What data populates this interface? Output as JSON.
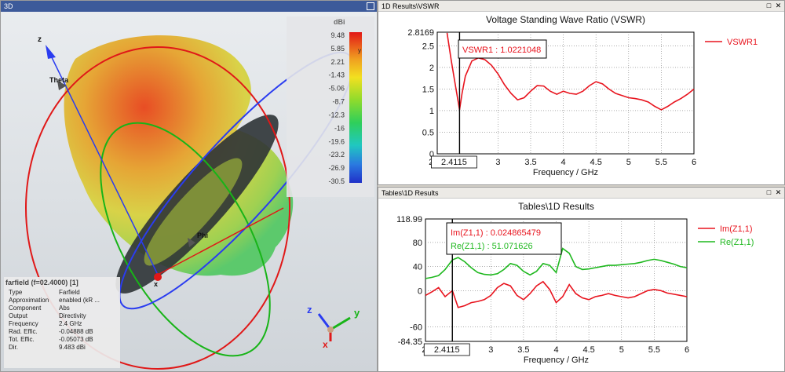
{
  "left_panel": {
    "title": "3D",
    "colorbar": {
      "unit": "dBi",
      "ticks": [
        "9.48",
        "5.85",
        "2.21",
        "-1.43",
        "-5.06",
        "-8.7",
        "-12.3",
        "-16",
        "-19.6",
        "-23.2",
        "-26.9",
        "-30.5"
      ],
      "marker": "y"
    },
    "axis_labels": {
      "z": "z",
      "theta": "Theta",
      "phi": "Phi",
      "x": "x"
    },
    "triad": {
      "z": "z",
      "y": "y",
      "x": "x"
    },
    "info": {
      "header": "farfield (f=02.4000) [1]",
      "rows": [
        {
          "key": "Type",
          "value": "Farfield"
        },
        {
          "key": "Approximation",
          "value": "enabled (kR ..."
        },
        {
          "key": "Component",
          "value": "Abs"
        },
        {
          "key": "Output",
          "value": "Directivity"
        },
        {
          "key": "Frequency",
          "value": "2.4 GHz"
        },
        {
          "key": "Rad. Effic.",
          "value": "-0.04888 dB"
        },
        {
          "key": "Tot. Effic.",
          "value": "-0.05073 dB"
        },
        {
          "key": "Dir.",
          "value": "9.483 dBi"
        }
      ]
    }
  },
  "top_right": {
    "title": "1D Results\\VSWR"
  },
  "bottom_right": {
    "title": "Tables\\1D Results"
  },
  "chart_data": [
    {
      "type": "line",
      "title": "Voltage Standing Wave Ratio (VSWR)",
      "xlabel": "Frequency / GHz",
      "ylabel": "",
      "xlim": [
        2.07,
        6
      ],
      "ylim": [
        0,
        2.8169
      ],
      "x_ticks": [
        "2.07",
        "3",
        "3.5",
        "4",
        "4.5",
        "5",
        "5.5",
        "6"
      ],
      "y_ticks": [
        "2.8169",
        "2.5",
        "2",
        "1.5",
        "1",
        "0.5",
        "0"
      ],
      "marker_x": 2.4115,
      "marker_label": "2.4115",
      "annotation": "VSWR1 : 1.0221048",
      "series": [
        {
          "name": "VSWR1",
          "color": "#e8141e",
          "x": [
            2.22,
            2.28,
            2.33,
            2.38,
            2.4115,
            2.45,
            2.5,
            2.6,
            2.7,
            2.8,
            2.9,
            3.0,
            3.1,
            3.2,
            3.3,
            3.4,
            3.5,
            3.6,
            3.7,
            3.8,
            3.9,
            4.0,
            4.1,
            4.2,
            4.3,
            4.4,
            4.5,
            4.6,
            4.7,
            4.8,
            4.9,
            5.0,
            5.1,
            5.2,
            5.3,
            5.4,
            5.5,
            5.6,
            5.7,
            5.8,
            5.9,
            6.0
          ],
          "y": [
            2.8,
            2.2,
            1.75,
            1.3,
            1.02,
            1.4,
            1.8,
            2.15,
            2.22,
            2.18,
            2.05,
            1.85,
            1.6,
            1.4,
            1.25,
            1.3,
            1.45,
            1.58,
            1.57,
            1.45,
            1.38,
            1.45,
            1.4,
            1.38,
            1.45,
            1.58,
            1.67,
            1.62,
            1.5,
            1.4,
            1.35,
            1.3,
            1.28,
            1.25,
            1.2,
            1.1,
            1.02,
            1.1,
            1.2,
            1.28,
            1.38,
            1.5
          ]
        }
      ],
      "grid": true,
      "legend": "top-right"
    },
    {
      "type": "line",
      "title": "Tables\\1D Results",
      "xlabel": "Frequency / GHz",
      "ylabel": "",
      "xlim": [
        2,
        6
      ],
      "ylim": [
        -84.35,
        118.99
      ],
      "x_ticks": [
        "2.",
        "3",
        "3.5",
        "4",
        "4.5",
        "5",
        "5.5",
        "6"
      ],
      "y_ticks": [
        "118.99",
        "80",
        "40",
        "0",
        "-60",
        "-84.35"
      ],
      "marker_x": 2.4115,
      "marker_label": "2.4115",
      "annotations": [
        "Im(Z1,1) : 0.024865479",
        "Re(Z1,1) : 51.071626"
      ],
      "series": [
        {
          "name": "Im(Z1,1)",
          "color": "#e8141e",
          "x": [
            2.0,
            2.1,
            2.2,
            2.3,
            2.4115,
            2.5,
            2.6,
            2.7,
            2.8,
            2.9,
            3.0,
            3.1,
            3.2,
            3.3,
            3.4,
            3.5,
            3.6,
            3.7,
            3.8,
            3.9,
            4.0,
            4.1,
            4.2,
            4.3,
            4.4,
            4.5,
            4.6,
            4.7,
            4.8,
            4.9,
            5.0,
            5.1,
            5.2,
            5.3,
            5.4,
            5.5,
            5.6,
            5.7,
            5.8,
            5.9,
            6.0
          ],
          "y": [
            -8,
            -2,
            5,
            -10,
            0,
            -28,
            -25,
            -20,
            -18,
            -15,
            -8,
            5,
            12,
            8,
            -8,
            -15,
            -5,
            8,
            15,
            2,
            -20,
            -10,
            10,
            -5,
            -12,
            -15,
            -10,
            -8,
            -5,
            -8,
            -10,
            -12,
            -10,
            -5,
            0,
            2,
            0,
            -4,
            -6,
            -8,
            -10
          ]
        },
        {
          "name": "Re(Z1,1)",
          "color": "#1fb81f",
          "x": [
            2.0,
            2.1,
            2.2,
            2.3,
            2.4115,
            2.5,
            2.6,
            2.7,
            2.8,
            2.9,
            3.0,
            3.1,
            3.2,
            3.3,
            3.4,
            3.5,
            3.6,
            3.7,
            3.8,
            3.9,
            4.0,
            4.1,
            4.2,
            4.3,
            4.4,
            4.5,
            4.6,
            4.7,
            4.8,
            4.9,
            5.0,
            5.1,
            5.2,
            5.3,
            5.4,
            5.5,
            5.6,
            5.7,
            5.8,
            5.9,
            6.0
          ],
          "y": [
            20,
            22,
            25,
            35,
            51,
            55,
            48,
            38,
            30,
            27,
            26,
            28,
            35,
            45,
            42,
            32,
            26,
            32,
            45,
            42,
            30,
            70,
            62,
            40,
            35,
            36,
            38,
            40,
            42,
            42,
            43,
            44,
            45,
            47,
            50,
            52,
            50,
            47,
            44,
            40,
            38
          ]
        }
      ],
      "grid": true,
      "legend": "top-right"
    }
  ]
}
